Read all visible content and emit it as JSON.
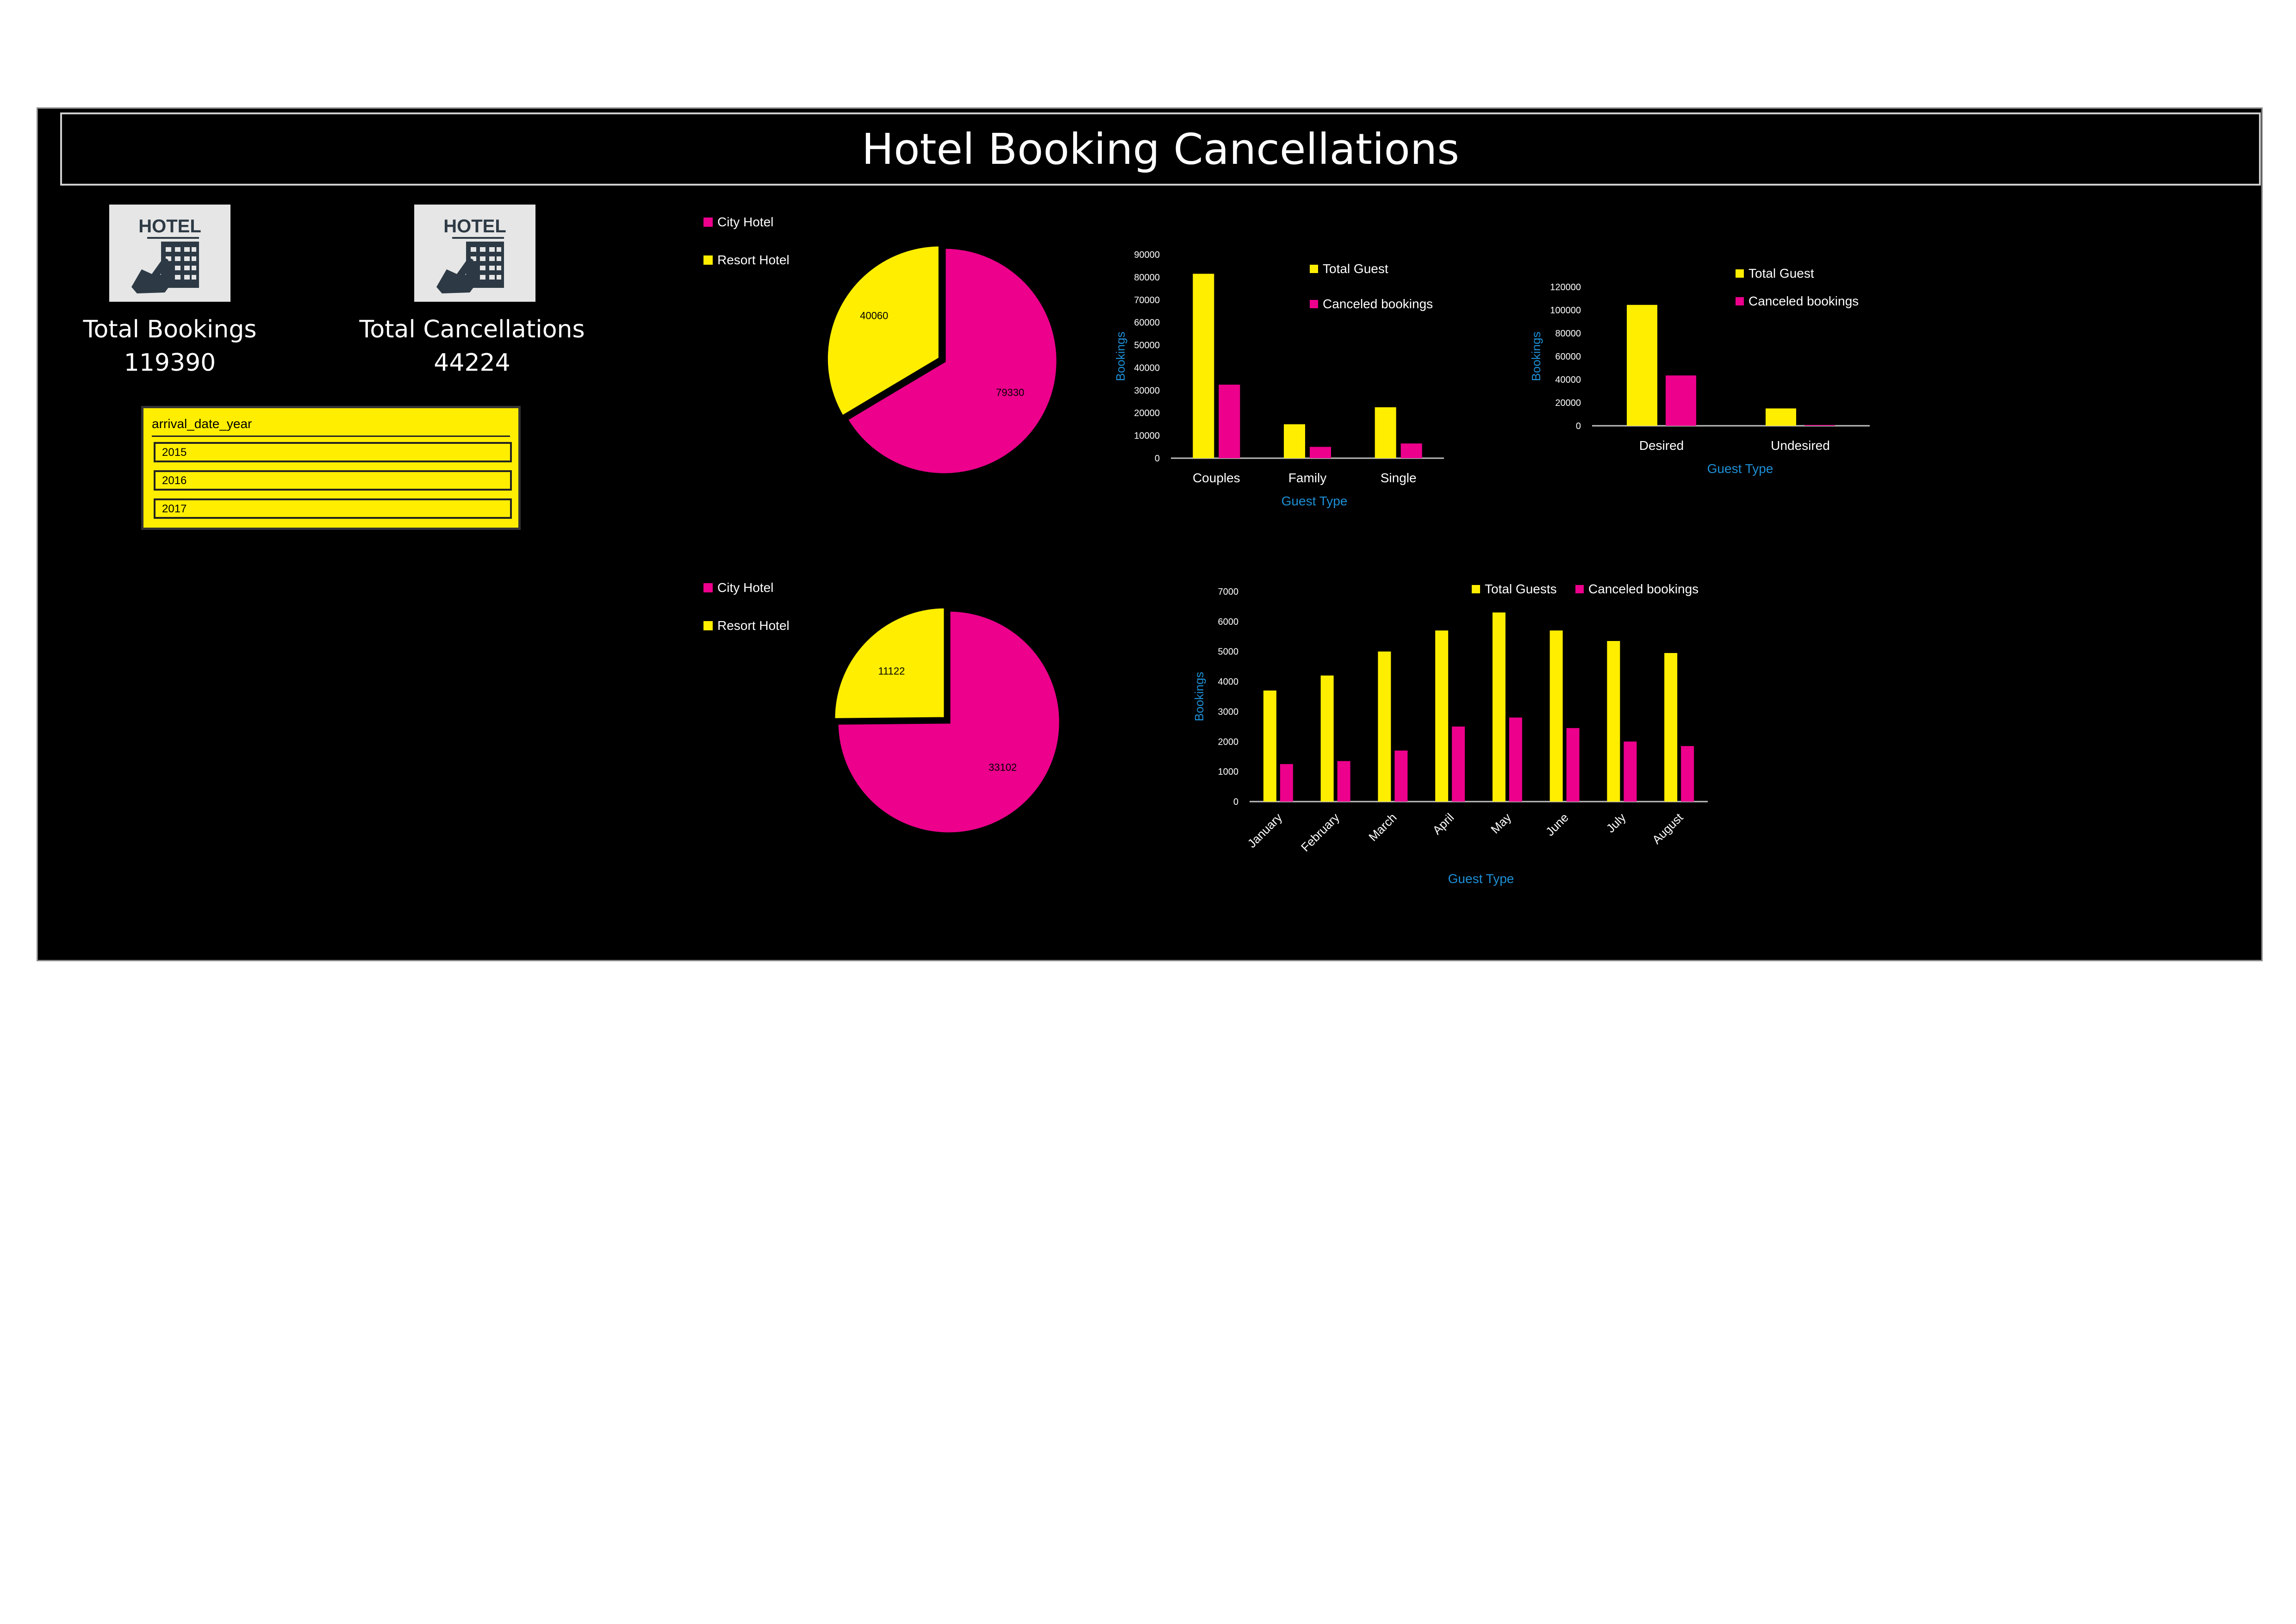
{
  "title": "Hotel Booking Cancellations",
  "kpis": {
    "bookings": {
      "icon_text": "HOTEL",
      "label": "Total Bookings",
      "value": "119390"
    },
    "cancellations": {
      "icon_text": "HOTEL",
      "label": "Total Cancellations",
      "value": "44224"
    }
  },
  "slicer": {
    "title": "arrival_date_year",
    "items": [
      "2015",
      "2016",
      "2017"
    ]
  },
  "colors": {
    "yellow": "#FFEE00",
    "pink": "#EC008C",
    "axis_title": "#1E90D6"
  },
  "chart_data": [
    {
      "type": "pie",
      "legend": [
        "City Hotel",
        "Resort Hotel"
      ],
      "values": [
        79330,
        40060
      ],
      "labels": [
        "79330",
        "40060"
      ],
      "colors": [
        "#EC008C",
        "#FFEE00"
      ]
    },
    {
      "type": "bar",
      "categories": [
        "Couples",
        "Family",
        "Single"
      ],
      "series": [
        {
          "name": "Total Guest",
          "values": [
            81500,
            15000,
            22500
          ],
          "color": "#FFEE00"
        },
        {
          "name": "Canceled bookings",
          "values": [
            32500,
            5000,
            6500
          ],
          "color": "#EC008C"
        }
      ],
      "ylabel": "Bookings",
      "xlabel": "Guest Type",
      "ylim": [
        0,
        90000
      ],
      "yticks": [
        "0",
        "10000",
        "20000",
        "30000",
        "40000",
        "50000",
        "60000",
        "70000",
        "80000",
        "90000"
      ]
    },
    {
      "type": "bar",
      "categories": [
        "Desired",
        "Undesired"
      ],
      "series": [
        {
          "name": "Total Guest",
          "values": [
            104500,
            15000
          ],
          "color": "#FFEE00"
        },
        {
          "name": "Canceled bookings",
          "values": [
            43500,
            700
          ],
          "color": "#EC008C"
        }
      ],
      "ylabel": "Bookings",
      "xlabel": "Guest Type",
      "ylim": [
        0,
        120000
      ],
      "yticks": [
        "0",
        "20000",
        "40000",
        "60000",
        "80000",
        "100000",
        "120000"
      ]
    },
    {
      "type": "pie",
      "legend": [
        "City Hotel",
        "Resort Hotel"
      ],
      "values": [
        33102,
        11122
      ],
      "labels": [
        "33102",
        "11122"
      ],
      "colors": [
        "#EC008C",
        "#FFEE00"
      ]
    },
    {
      "type": "bar",
      "categories": [
        "January",
        "February",
        "March",
        "April",
        "May",
        "June",
        "July",
        "August"
      ],
      "series": [
        {
          "name": "Total Guests",
          "values": [
            3700,
            4200,
            5000,
            5700,
            6300,
            5700,
            5350,
            4950
          ],
          "color": "#FFEE00"
        },
        {
          "name": "Canceled bookings",
          "values": [
            1250,
            1350,
            1700,
            2500,
            2800,
            2450,
            2000,
            1850
          ],
          "color": "#EC008C"
        }
      ],
      "ylabel": "Bookings",
      "xlabel": "Guest Type",
      "ylim": [
        0,
        7000
      ],
      "yticks": [
        "0",
        "1000",
        "2000",
        "3000",
        "4000",
        "5000",
        "6000",
        "7000"
      ]
    }
  ]
}
